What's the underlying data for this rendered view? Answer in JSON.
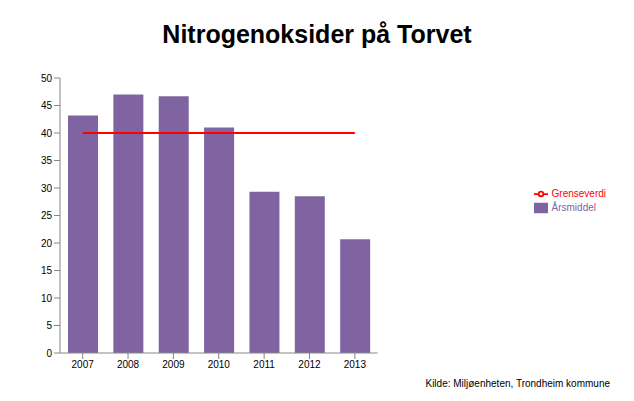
{
  "chart_data": {
    "type": "bar",
    "title": "Nitrogenoksider på Torvet",
    "categories": [
      "2007",
      "2008",
      "2009",
      "2010",
      "2011",
      "2012",
      "2013"
    ],
    "series": [
      {
        "name": "Årsmiddel",
        "type": "bar",
        "color": "#8064a2",
        "values": [
          43.2,
          47,
          46.7,
          41,
          29.3,
          28.5,
          20.7
        ]
      },
      {
        "name": "Grenseverdi",
        "type": "line",
        "color": "#ff0000",
        "values": [
          40,
          40,
          40,
          40,
          40,
          40,
          40
        ]
      }
    ],
    "ylim": [
      0,
      50
    ],
    "yticks": [
      0,
      5,
      10,
      15,
      20,
      25,
      30,
      35,
      40,
      45,
      50
    ],
    "grid": false,
    "legend": "right",
    "annotations": [
      "Kilde: Miljøenheten, Trondheim kommune"
    ]
  }
}
